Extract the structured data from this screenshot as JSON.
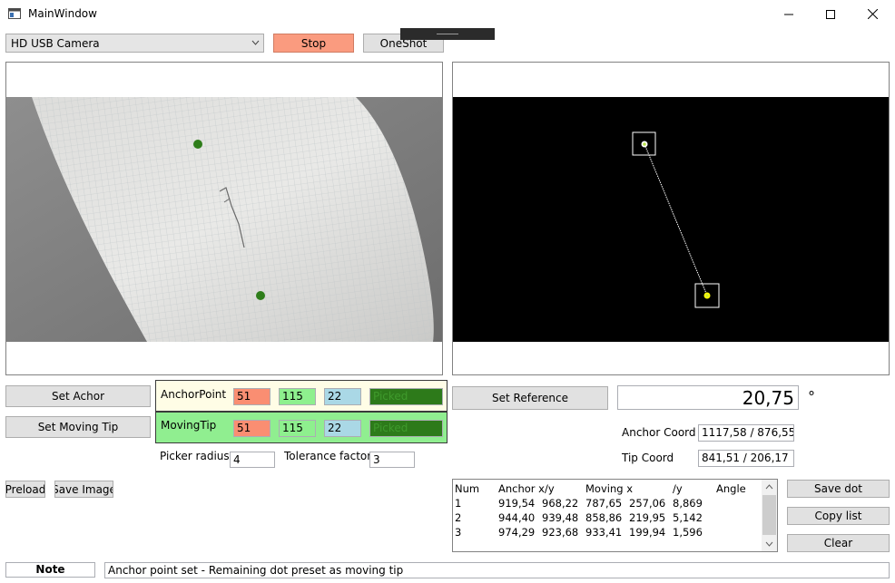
{
  "window": {
    "title": "MainWindow",
    "minimize_glyph": "—",
    "maximize_glyph": "☐",
    "close_glyph": "✕"
  },
  "toolbar": {
    "camera_select": "HD USB Camera",
    "stop_label": "Stop",
    "oneshot_label": "OneShot"
  },
  "colors": {
    "stop_bg": "#fa9b7f",
    "anchor_panel_bg": "#fffde6",
    "moving_panel_bg": "#90ee90",
    "red_field": "#fa8e72",
    "green_field": "#8ef08e",
    "blue_field": "#aad8e6",
    "picked_field": "#2d7a1a"
  },
  "buttons": {
    "set_anchor": "Set Achor",
    "set_moving_tip": "Set Moving Tip",
    "set_reference": "Set Reference",
    "preload": "Preload",
    "save_image": "Save Image",
    "save_dot": "Save dot",
    "copy_list": "Copy list",
    "clear": "Clear"
  },
  "anchor": {
    "label": "AnchorPoint",
    "r": "51",
    "g": "115",
    "b": "22",
    "picked": "Picked"
  },
  "moving": {
    "label": "MovingTip",
    "r": "51",
    "g": "115",
    "b": "22",
    "picked": "Picked"
  },
  "picker": {
    "radius_label": "Picker radius",
    "radius_value": "4",
    "tolerance_label": "Tolerance factor",
    "tolerance_value": "3"
  },
  "measure": {
    "angle_value": "20,75",
    "degree_symbol": "°",
    "anchor_coord_label": "Anchor Coord",
    "anchor_coord_value": "1117,58 / 876,55",
    "tip_coord_label": "Tip Coord",
    "tip_coord_value": "841,51 / 206,17"
  },
  "table": {
    "headers": [
      "Num",
      "Anchor x/y",
      "",
      "Moving x",
      "/y",
      "Angle"
    ],
    "rows": [
      [
        "1",
        "919,54",
        "968,22",
        "787,65",
        "257,06",
        "8,869"
      ],
      [
        "2",
        "944,40",
        "939,48",
        "858,86",
        "219,95",
        "5,142"
      ],
      [
        "3",
        "974,29",
        "923,68",
        "933,41",
        "199,94",
        "1,596"
      ]
    ]
  },
  "status": {
    "note_label": "Note",
    "message": "Anchor point set - Remaining dot preset as moving tip"
  }
}
